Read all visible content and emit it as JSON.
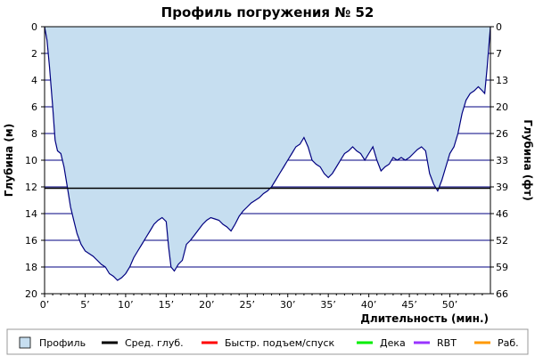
{
  "chart_data": {
    "type": "area",
    "title": "Профиль погружения № 52",
    "xlabel": "Длительность (мин.)",
    "ylabel": "Глубина (м)",
    "ylabel_right": "Глубина (фт)",
    "xlim": [
      0,
      55
    ],
    "ylim": [
      0,
      20
    ],
    "y_inverted": true,
    "x_ticks": [
      0,
      5,
      10,
      15,
      20,
      25,
      30,
      35,
      40,
      45,
      50
    ],
    "x_tick_labels": [
      "0’",
      "5’",
      "10’",
      "15’",
      "20’",
      "25’",
      "30’",
      "35’",
      "40’",
      "45’",
      "50’"
    ],
    "y_ticks": [
      0,
      2,
      4,
      6,
      8,
      10,
      12,
      14,
      16,
      18,
      20
    ],
    "y_tick_labels": [
      "0",
      "2",
      "4",
      "6",
      "8",
      "10",
      "12",
      "14",
      "16",
      "18",
      "20"
    ],
    "y2_ticks": [
      0,
      7,
      13,
      20,
      26,
      33,
      39,
      46,
      52,
      59,
      66
    ],
    "y2_tick_labels": [
      "0",
      "7",
      "13",
      "20",
      "26",
      "33",
      "39",
      "46",
      "52",
      "59",
      "66"
    ],
    "grid": true,
    "average_depth": 12.1,
    "legend_position": "bottom",
    "colors": {
      "area": "#c6def0",
      "line": "#000080",
      "grid": "#000080",
      "average": "#000000",
      "fast": "#ff0000",
      "deco": "#00ee00",
      "rbt": "#9933ff",
      "work": "#ff9900"
    },
    "series": [
      {
        "name": "Профиль",
        "x": [
          0,
          0.3,
          0.6,
          1.0,
          1.3,
          1.6,
          2.0,
          2.4,
          2.8,
          3.2,
          3.6,
          4.0,
          4.5,
          5.0,
          5.5,
          6.0,
          6.5,
          7.0,
          7.5,
          8.0,
          8.5,
          9.0,
          9.5,
          10.0,
          10.5,
          11.0,
          11.5,
          12.0,
          12.5,
          13.0,
          13.5,
          14.0,
          14.5,
          15.0,
          15.3,
          15.6,
          16.0,
          16.5,
          17.0,
          17.5,
          18.0,
          18.5,
          19.0,
          19.5,
          20.0,
          20.5,
          21.0,
          21.5,
          22.0,
          22.5,
          23.0,
          23.5,
          24.0,
          24.5,
          25.0,
          25.5,
          26.0,
          26.5,
          27.0,
          27.5,
          28.0,
          28.5,
          29.0,
          29.5,
          30.0,
          30.5,
          31.0,
          31.5,
          32.0,
          32.5,
          33.0,
          33.5,
          34.0,
          34.5,
          35.0,
          35.5,
          36.0,
          36.5,
          37.0,
          37.5,
          38.0,
          38.5,
          39.0,
          39.5,
          40.0,
          40.5,
          41.0,
          41.5,
          42.0,
          42.5,
          43.0,
          43.5,
          44.0,
          44.5,
          45.0,
          45.5,
          46.0,
          46.5,
          47.0,
          47.5,
          48.0,
          48.5,
          49.0,
          49.5,
          50.0,
          50.5,
          51.0,
          51.5,
          52.0,
          52.5,
          53.0,
          53.5,
          54.0,
          54.3,
          54.6,
          55.0
        ],
        "values": [
          0,
          1.0,
          3.0,
          6.0,
          8.5,
          9.3,
          9.5,
          10.5,
          12.0,
          13.5,
          14.5,
          15.5,
          16.3,
          16.8,
          17.0,
          17.2,
          17.5,
          17.8,
          18.0,
          18.5,
          18.7,
          19.0,
          18.8,
          18.5,
          18.0,
          17.3,
          16.8,
          16.3,
          15.8,
          15.3,
          14.8,
          14.5,
          14.3,
          14.6,
          16.5,
          18.0,
          18.3,
          17.8,
          17.5,
          16.3,
          16.0,
          15.6,
          15.2,
          14.8,
          14.5,
          14.3,
          14.4,
          14.5,
          14.8,
          15.0,
          15.3,
          14.8,
          14.2,
          13.8,
          13.5,
          13.2,
          13.0,
          12.8,
          12.5,
          12.3,
          12.0,
          11.5,
          11.0,
          10.5,
          10.0,
          9.5,
          9.0,
          8.8,
          8.3,
          9.0,
          10.0,
          10.3,
          10.5,
          11.0,
          11.3,
          11.0,
          10.5,
          10.0,
          9.5,
          9.3,
          9.0,
          9.3,
          9.5,
          10.0,
          9.5,
          9.0,
          10.0,
          10.8,
          10.5,
          10.3,
          9.8,
          10.0,
          9.8,
          10.0,
          9.8,
          9.5,
          9.2,
          9.0,
          9.3,
          11.0,
          11.8,
          12.3,
          11.5,
          10.5,
          9.5,
          9.0,
          8.0,
          6.5,
          5.5,
          5.0,
          4.8,
          4.5,
          4.8,
          5.0,
          3.0,
          0
        ]
      }
    ],
    "legend": [
      {
        "label": "Профиль",
        "kind": "box",
        "color": "#c6def0"
      },
      {
        "label": "Сред. глуб.",
        "kind": "line",
        "color": "#000000"
      },
      {
        "label": "Быстр. подъем/спуск",
        "kind": "line",
        "color": "#ff0000"
      },
      {
        "label": "Дека",
        "kind": "line",
        "color": "#00ee00"
      },
      {
        "label": "RBT",
        "kind": "line",
        "color": "#9933ff"
      },
      {
        "label": "Раб.",
        "kind": "line",
        "color": "#ff9900"
      }
    ]
  }
}
